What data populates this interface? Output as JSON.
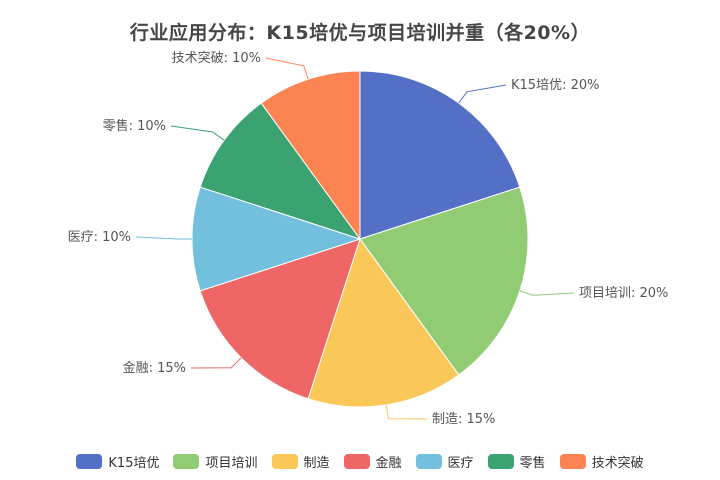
{
  "chart_data": {
    "type": "pie",
    "title": "行业应用分布：K15培优与项目培训并重（各20%）",
    "slices": [
      {
        "name": "K15培优",
        "value": 20,
        "label": "K15培优: 20%",
        "color": "#5470c6",
        "side": "right"
      },
      {
        "name": "项目培训",
        "value": 20,
        "label": "项目培训: 20%",
        "color": "#91cc75",
        "side": "right"
      },
      {
        "name": "制造",
        "value": 15,
        "label": "制造: 15%",
        "color": "#fac858",
        "side": "right"
      },
      {
        "name": "金融",
        "value": 15,
        "label": "金融: 15%",
        "color": "#ee6666",
        "side": "left"
      },
      {
        "name": "医疗",
        "value": 10,
        "label": "医疗: 10%",
        "color": "#73c0de",
        "side": "left"
      },
      {
        "name": "零售",
        "value": 10,
        "label": "零售: 10%",
        "color": "#3ba272",
        "side": "left"
      },
      {
        "name": "技术突破",
        "value": 10,
        "label": "技术突破: 10%",
        "color": "#fc8452",
        "side": "left"
      }
    ],
    "start_angle": "12 o'clock",
    "direction": "clockwise",
    "legend_position": "bottom"
  }
}
